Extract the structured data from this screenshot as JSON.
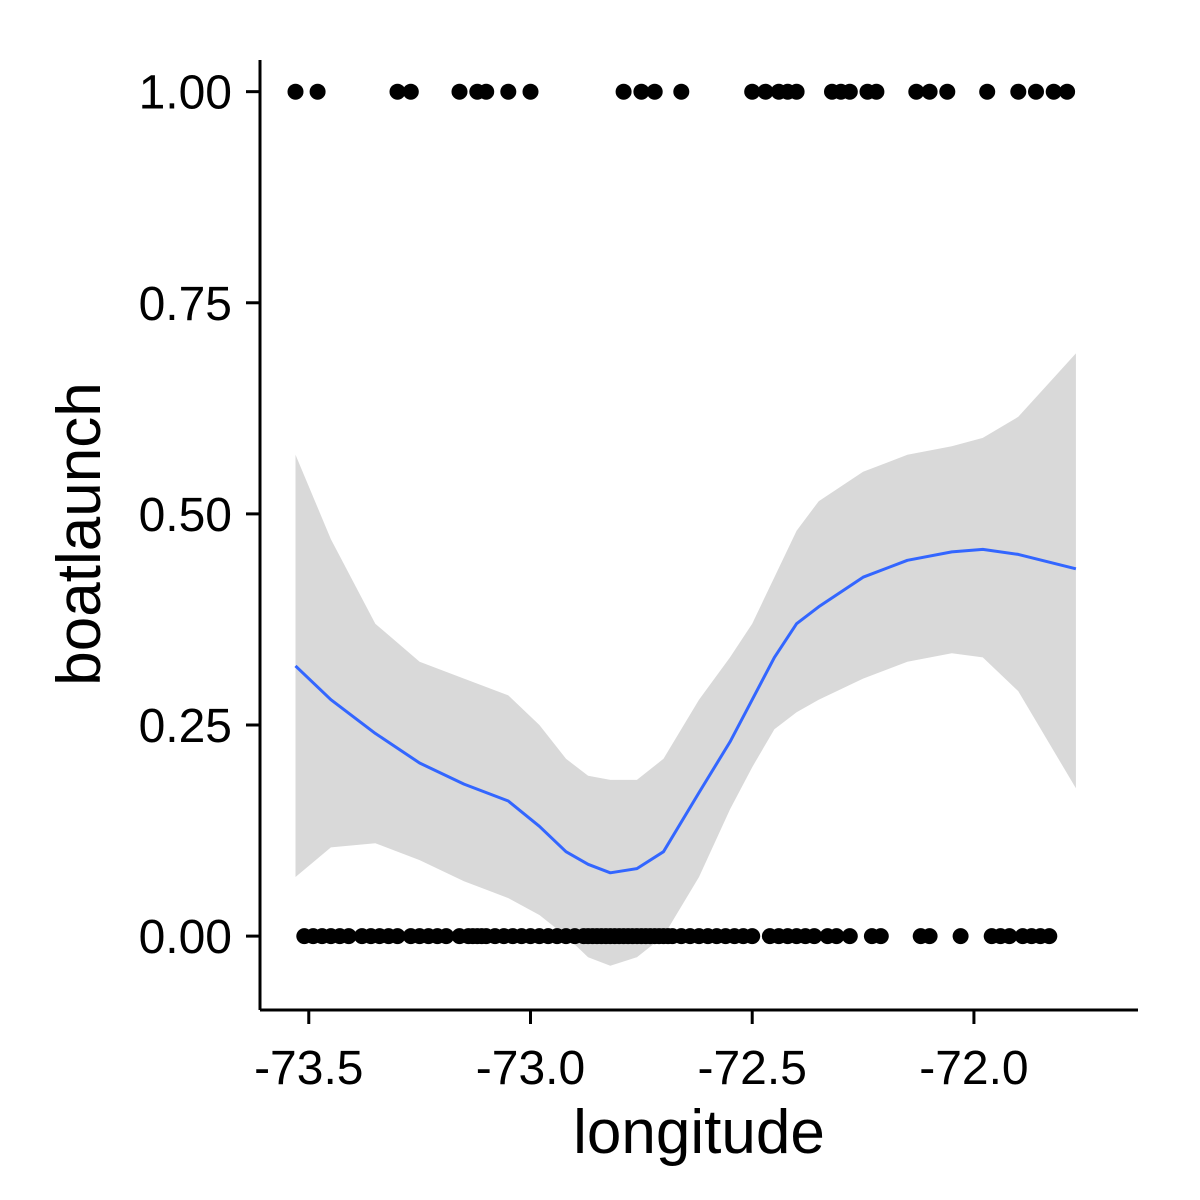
{
  "chart_data": {
    "type": "scatter",
    "title": "",
    "xlabel": "longitude",
    "ylabel": "boatlaunch",
    "xlim": [
      -73.61,
      -71.63
    ],
    "ylim": [
      -0.0875,
      1.0375
    ],
    "x_ticks": [
      {
        "value": -73.5,
        "label": "-73.5"
      },
      {
        "value": -73.0,
        "label": "-73.0"
      },
      {
        "value": -72.5,
        "label": "-72.5"
      },
      {
        "value": -72.0,
        "label": "-72.0"
      }
    ],
    "y_ticks": [
      {
        "value": 0.0,
        "label": "0.00"
      },
      {
        "value": 0.25,
        "label": "0.25"
      },
      {
        "value": 0.5,
        "label": "0.50"
      },
      {
        "value": 0.75,
        "label": "0.75"
      },
      {
        "value": 1.0,
        "label": "1.00"
      }
    ],
    "grid": false,
    "colors": {
      "points": "#000000",
      "smooth_line": "#3366ff",
      "ribbon": "#d9d9d9",
      "axis": "#000000"
    },
    "points_y1": {
      "y": 1,
      "x": [
        -73.53,
        -73.48,
        -73.3,
        -73.27,
        -73.16,
        -73.12,
        -73.1,
        -73.05,
        -73.0,
        -72.79,
        -72.75,
        -72.72,
        -72.66,
        -72.5,
        -72.47,
        -72.44,
        -72.42,
        -72.4,
        -72.32,
        -72.3,
        -72.28,
        -72.24,
        -72.22,
        -72.13,
        -72.1,
        -72.06,
        -71.97,
        -71.9,
        -71.86,
        -71.82,
        -71.79
      ]
    },
    "points_y0": {
      "y": 0,
      "x": [
        -73.51,
        -73.49,
        -73.47,
        -73.45,
        -73.43,
        -73.41,
        -73.38,
        -73.36,
        -73.34,
        -73.32,
        -73.3,
        -73.27,
        -73.25,
        -73.23,
        -73.21,
        -73.19,
        -73.16,
        -73.14,
        -73.13,
        -73.12,
        -73.11,
        -73.1,
        -73.08,
        -73.06,
        -73.04,
        -73.02,
        -73.0,
        -72.98,
        -72.96,
        -72.94,
        -72.92,
        -72.9,
        -72.88,
        -72.87,
        -72.86,
        -72.85,
        -72.84,
        -72.83,
        -72.82,
        -72.81,
        -72.8,
        -72.79,
        -72.78,
        -72.77,
        -72.76,
        -72.75,
        -72.74,
        -72.73,
        -72.72,
        -72.71,
        -72.7,
        -72.69,
        -72.68,
        -72.66,
        -72.64,
        -72.62,
        -72.6,
        -72.58,
        -72.56,
        -72.54,
        -72.52,
        -72.5,
        -72.46,
        -72.44,
        -72.42,
        -72.4,
        -72.38,
        -72.36,
        -72.33,
        -72.31,
        -72.28,
        -72.23,
        -72.21,
        -72.12,
        -72.1,
        -72.03,
        -71.96,
        -71.94,
        -71.92,
        -71.89,
        -71.87,
        -71.85,
        -71.83
      ]
    },
    "smooth": {
      "x": [
        -73.53,
        -73.45,
        -73.35,
        -73.25,
        -73.15,
        -73.05,
        -72.98,
        -72.92,
        -72.87,
        -72.82,
        -72.76,
        -72.7,
        -72.62,
        -72.55,
        -72.5,
        -72.45,
        -72.4,
        -72.35,
        -72.25,
        -72.15,
        -72.05,
        -71.98,
        -71.9,
        -71.77
      ],
      "y": [
        0.32,
        0.28,
        0.24,
        0.205,
        0.18,
        0.16,
        0.13,
        0.1,
        0.085,
        0.075,
        0.08,
        0.1,
        0.17,
        0.23,
        0.28,
        0.33,
        0.37,
        0.39,
        0.425,
        0.445,
        0.455,
        0.458,
        0.452,
        0.435
      ],
      "lower": [
        0.07,
        0.105,
        0.11,
        0.09,
        0.065,
        0.045,
        0.025,
        0.0,
        -0.025,
        -0.035,
        -0.025,
        0.0,
        0.07,
        0.15,
        0.2,
        0.245,
        0.265,
        0.28,
        0.305,
        0.325,
        0.335,
        0.33,
        0.29,
        0.175
      ],
      "upper": [
        0.57,
        0.47,
        0.37,
        0.325,
        0.305,
        0.285,
        0.25,
        0.21,
        0.19,
        0.185,
        0.185,
        0.21,
        0.28,
        0.33,
        0.37,
        0.425,
        0.48,
        0.515,
        0.55,
        0.57,
        0.58,
        0.59,
        0.615,
        0.69
      ]
    }
  }
}
